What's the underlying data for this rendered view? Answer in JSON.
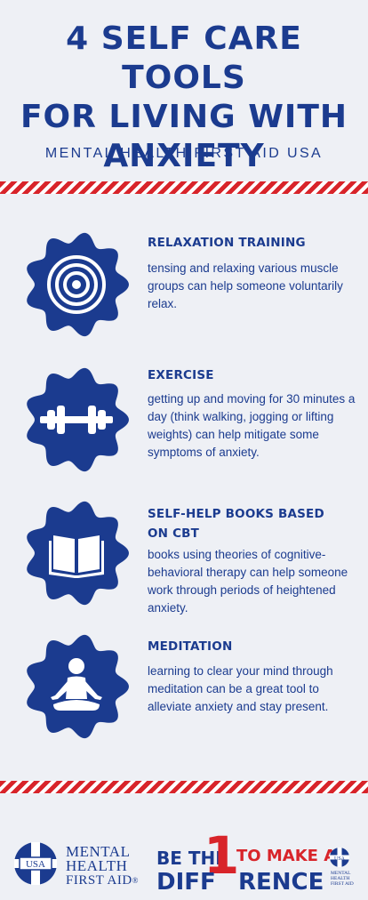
{
  "title": {
    "line1": "4 SELF CARE TOOLS",
    "line2": "FOR LIVING WITH",
    "line3": "ANXIETY"
  },
  "subtitle": "MENTAL HEALTH FIRST AID USA",
  "items": [
    {
      "title_lines": [
        "RELAXATION TRAINING"
      ],
      "body": " tensing and relaxing various muscle groups can help someone voluntarily relax.",
      "icon": "target-icon"
    },
    {
      "title_lines": [
        "EXERCISE"
      ],
      "body": "getting up and moving for 30 minutes a day (think walking, jogging or lifting weights) can help mitigate some symptoms of anxiety.",
      "icon": "dumbbell-icon"
    },
    {
      "title_lines": [
        "SELF-HELP BOOKS BASED",
        "ON CBT"
      ],
      "body": "books using theories of cognitive-behavioral therapy can help someone work through periods of heightened anxiety.",
      "icon": "open-book-icon"
    },
    {
      "title_lines": [
        "MEDITATION"
      ],
      "body": "learning to clear your mind through meditation can be a great tool to alleviate anxiety and stay present.",
      "icon": "meditation-icon"
    }
  ],
  "footer": {
    "logo_badge": "USA",
    "mhfa_line1": "MENTAL",
    "mhfa_line2": "HEALTH",
    "mhfa_line3": "FIRST AID",
    "mhfa_mark": "®",
    "slogan_be_the": "BE THE",
    "slogan_digit": "1",
    "slogan_to_make_a": "TO MAKE A",
    "slogan_difference": "DIFF",
    "slogan_difference_end": "RENCE",
    "small_badge": "USA",
    "small_line1": "MENTAL",
    "small_line2": "HEALTH",
    "small_line3": "FIRST AID"
  },
  "colors": {
    "navy": "#1b3b8f",
    "red": "#d8242a",
    "background": "#eef0f5"
  }
}
